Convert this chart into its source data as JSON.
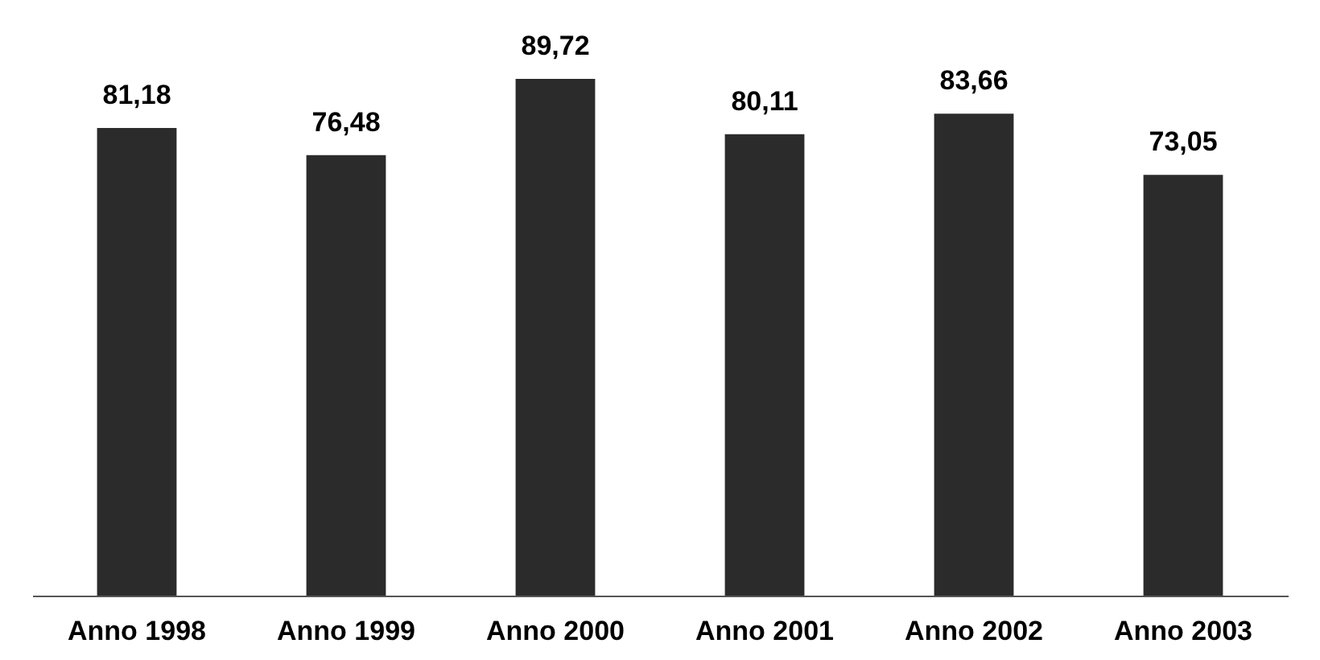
{
  "chart_data": {
    "type": "bar",
    "categories": [
      "Anno 1998",
      "Anno 1999",
      "Anno 2000",
      "Anno 2001",
      "Anno 2002",
      "Anno 2003"
    ],
    "values": [
      81.18,
      76.48,
      89.72,
      80.11,
      83.66,
      73.05
    ],
    "value_labels": [
      "81,18",
      "76,48",
      "89,72",
      "80,11",
      "83,66",
      "73,05"
    ],
    "color": "#2b2b2b",
    "grid": false
  }
}
